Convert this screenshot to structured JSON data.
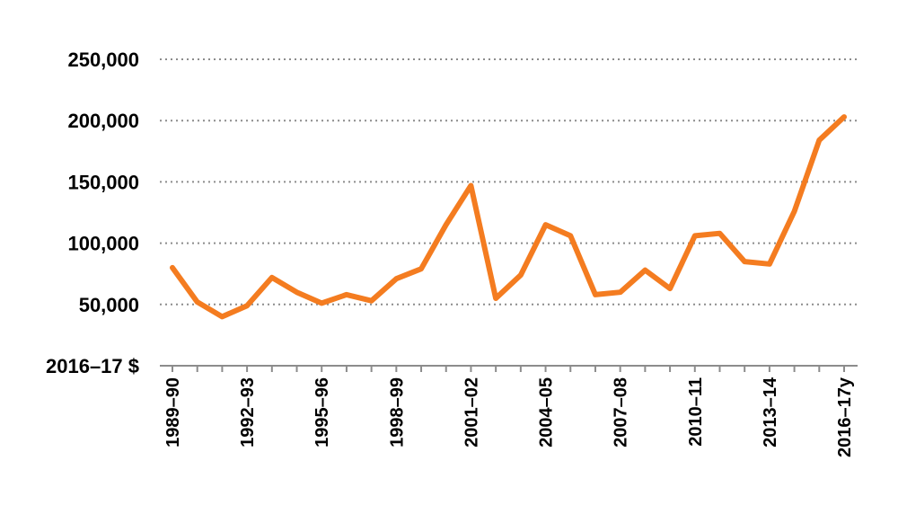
{
  "chart_data": {
    "type": "line",
    "ylabel": "2016–17 $",
    "ylim": [
      0,
      250000
    ],
    "yticks": [
      50000,
      100000,
      150000,
      200000,
      250000
    ],
    "ytick_labels": [
      "50,000",
      "100,000",
      "150,000",
      "200,000",
      "250,000"
    ],
    "grid": true,
    "x": [
      "1989–90",
      "1990–91",
      "1991–92",
      "1992–93",
      "1993–94",
      "1994–95",
      "1995–96",
      "1996–97",
      "1997–98",
      "1998–99",
      "1999–00",
      "2000–01",
      "2001–02",
      "2002–03",
      "2003–04",
      "2004–05",
      "2005–06",
      "2006–07",
      "2007–08",
      "2008–09",
      "2009–10",
      "2010–11",
      "2011–12",
      "2012–13",
      "2013–14",
      "2014–15",
      "2015–16",
      "2016–17y"
    ],
    "x_labeled": [
      "1989–90",
      "1992–93",
      "1995–96",
      "1998–99",
      "2001–02",
      "2004–05",
      "2007–08",
      "2010–11",
      "2013–14",
      "2016–17y"
    ],
    "series": [
      {
        "color": "#f47c20",
        "values": [
          80000,
          52000,
          40000,
          49000,
          72000,
          60000,
          51000,
          58000,
          53000,
          71000,
          79000,
          115000,
          147000,
          55000,
          74000,
          115000,
          106000,
          58000,
          60000,
          78000,
          63000,
          106000,
          108000,
          85000,
          83000,
          126000,
          184000,
          203000
        ]
      }
    ]
  }
}
